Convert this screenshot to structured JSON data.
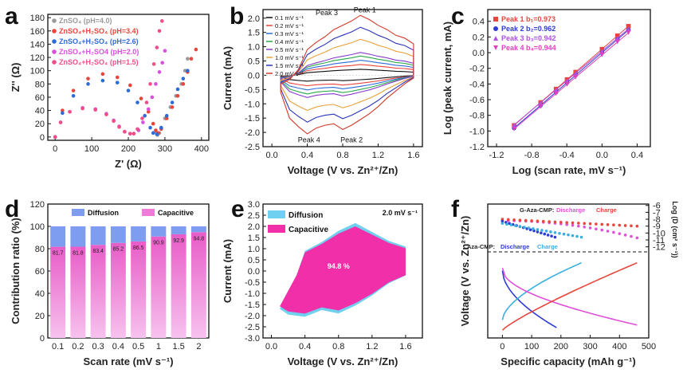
{
  "chart_data": [
    {
      "panel": "a",
      "type": "scatter",
      "xlabel": "Z' (Ω)",
      "ylabel": "Z'' (Ω)",
      "xlim": [
        -20,
        420
      ],
      "ylim": [
        -5,
        185
      ],
      "xticks": [
        "0",
        "100",
        "200",
        "300",
        "400"
      ],
      "yticks": [
        "0",
        "20",
        "40",
        "60",
        "80",
        "100",
        "120",
        "140",
        "160",
        "180"
      ],
      "legend_position": "top-left",
      "series": [
        {
          "name": "ZnSO₄ (pH=4.0)",
          "color": "#9a9a9a",
          "points": [
            [
              275,
              8
            ],
            [
              280,
              3
            ],
            [
              285,
              6
            ],
            [
              290,
              14
            ],
            [
              300,
              28
            ],
            [
              315,
              45
            ],
            [
              330,
              62
            ],
            [
              345,
              80
            ],
            [
              355,
              100
            ],
            [
              362,
              118
            ]
          ]
        },
        {
          "name": "ZnSO₄+H₂SO₄ (pH=3.4)",
          "color": "#e8453c",
          "points": [
            [
              0,
              0
            ],
            [
              20,
              40
            ],
            [
              50,
              70
            ],
            [
              90,
              88
            ],
            [
              130,
              95
            ],
            [
              170,
              90
            ],
            [
              205,
              78
            ],
            [
              235,
              58
            ],
            [
              255,
              38
            ],
            [
              268,
              20
            ],
            [
              275,
              10
            ],
            [
              282,
              6
            ],
            [
              290,
              12
            ],
            [
              305,
              28
            ],
            [
              320,
              45
            ],
            [
              335,
              62
            ],
            [
              350,
              80
            ],
            [
              362,
              98
            ],
            [
              372,
              118
            ],
            [
              385,
              132
            ]
          ]
        },
        {
          "name": "ZnSO₄+H₂SO₄ (pH=2.6)",
          "color": "#2e6bd6",
          "points": [
            [
              0,
              0
            ],
            [
              20,
              36
            ],
            [
              50,
              62
            ],
            [
              90,
              80
            ],
            [
              130,
              85
            ],
            [
              170,
              82
            ],
            [
              200,
              70
            ],
            [
              225,
              52
            ],
            [
              245,
              32
            ],
            [
              260,
              14
            ],
            [
              268,
              6
            ],
            [
              278,
              4
            ],
            [
              290,
              14
            ],
            [
              305,
              32
            ],
            [
              320,
              52
            ],
            [
              335,
              72
            ],
            [
              350,
              88
            ],
            [
              362,
              100
            ]
          ]
        },
        {
          "name": "ZnSO₄+H₂SO4 (pH=2.0)",
          "color": "#d94fe0",
          "points": [
            [
              0,
              0
            ],
            [
              15,
              22
            ],
            [
              40,
              38
            ],
            [
              75,
              44
            ],
            [
              110,
              42
            ],
            [
              140,
              35
            ],
            [
              160,
              25
            ],
            [
              175,
              16
            ],
            [
              190,
              8
            ],
            [
              205,
              5
            ],
            [
              215,
              5
            ],
            [
              228,
              10
            ],
            [
              240,
              22
            ],
            [
              255,
              42
            ],
            [
              265,
              60
            ],
            [
              275,
              80
            ],
            [
              285,
              98
            ],
            [
              293,
              112
            ],
            [
              300,
              130
            ]
          ]
        },
        {
          "name": "ZnSO₄+H₂SO₄ (pH=1.5)",
          "color": "#f04e8a",
          "points": [
            [
              0,
              0
            ],
            [
              15,
              22
            ],
            [
              40,
              38
            ],
            [
              75,
              43
            ],
            [
              110,
              41
            ],
            [
              140,
              34
            ],
            [
              160,
              24
            ],
            [
              175,
              15
            ],
            [
              190,
              8
            ],
            [
              205,
              5
            ],
            [
              215,
              5
            ],
            [
              225,
              12
            ],
            [
              238,
              28
            ],
            [
              250,
              52
            ],
            [
              260,
              80
            ],
            [
              270,
              110
            ],
            [
              278,
              135
            ],
            [
              285,
              160
            ],
            [
              292,
              175
            ]
          ]
        }
      ]
    },
    {
      "panel": "b",
      "type": "line",
      "xlabel": "Voltage (V vs. Zn²⁺/Zn)",
      "ylabel": "Current (mA)",
      "xlim": [
        -0.1,
        1.7
      ],
      "ylim": [
        -2.5,
        2.3
      ],
      "xticks": [
        "0.0",
        "0.4",
        "0.8",
        "1.2",
        "1.6"
      ],
      "yticks": [
        "-2.5",
        "-2.0",
        "-1.5",
        "-1.0",
        "-0.5",
        "0.0",
        "0.5",
        "1.0",
        "1.5",
        "2.0"
      ],
      "legend_position": "top-left",
      "annotations": [
        "Peak 3",
        "Peak 1",
        "Peak 4",
        "Peak 2"
      ],
      "series": [
        {
          "name": "0.1 mV s⁻¹",
          "color": "#111111",
          "scale": 0.1
        },
        {
          "name": "0.2 mV s⁻¹",
          "color": "#e8453c",
          "scale": 0.18
        },
        {
          "name": "0.3 mV s⁻¹",
          "color": "#2e6bd6",
          "scale": 0.25
        },
        {
          "name": "0.4 mV s⁻¹",
          "color": "#2aa84a",
          "scale": 0.32
        },
        {
          "name": "0.5 mV s⁻¹",
          "color": "#8a3ac9",
          "scale": 0.38
        },
        {
          "name": "1.0 mV s⁻¹",
          "color": "#e8a13c",
          "scale": 0.6
        },
        {
          "name": "1.5 mV s⁻¹",
          "color": "#2a35b8",
          "scale": 0.8
        },
        {
          "name": "2.0 mV s⁻¹",
          "color": "#d23a2a",
          "scale": 1.0
        }
      ]
    },
    {
      "panel": "c",
      "type": "scatter",
      "xlabel": "Log (scan rate, mV s⁻¹)",
      "ylabel": "Log (peak current, mA)",
      "xlim": [
        -1.3,
        0.55
      ],
      "ylim": [
        -1.2,
        0.55
      ],
      "xticks": [
        "-1.2",
        "-0.8",
        "-0.4",
        "0.0",
        "0.4"
      ],
      "yticks": [
        "-1.2",
        "-1.0",
        "-0.8",
        "-0.6",
        "-0.4",
        "-0.2",
        "0.0",
        "0.2",
        "0.4"
      ],
      "x": [
        -1.0,
        -0.699,
        -0.523,
        -0.398,
        -0.301,
        0.0,
        0.176,
        0.301
      ],
      "legend_position": "top-left",
      "series": [
        {
          "name": "Peak 1 b₁=0.973",
          "color": "#e8453c",
          "marker": "square",
          "slope": 0.973,
          "intercept": 0.045
        },
        {
          "name": "Peak 2 b₂=0.962",
          "color": "#2e3bd6",
          "marker": "circle",
          "slope": 0.962,
          "intercept": 0.0
        },
        {
          "name": "Peak 3 b₃=0.942",
          "color": "#b14fe0",
          "marker": "triangle",
          "slope": 0.942,
          "intercept": 0.02
        },
        {
          "name": "Peak 4 b₄=0.944",
          "color": "#e040c0",
          "marker": "triangle-down",
          "slope": 0.944,
          "intercept": -0.03
        }
      ]
    },
    {
      "panel": "d",
      "type": "bar",
      "xlabel": "Scan rate (mV s⁻¹)",
      "ylabel": "Contribution ratio (%)",
      "ylim": [
        0,
        120
      ],
      "yticks": [
        "0",
        "20",
        "40",
        "60",
        "80",
        "100",
        "120"
      ],
      "categories": [
        "0.1",
        "0.2",
        "0.3",
        "0.4",
        "0.5",
        "1",
        "1.5",
        "2"
      ],
      "legend_position": "top",
      "series": [
        {
          "name": "Capacitive",
          "color": "#f07ad8",
          "values": [
            81.7,
            81.8,
            83.4,
            85.2,
            86.5,
            90.9,
            92.9,
            94.8
          ]
        },
        {
          "name": "Diffusion",
          "color": "#7f9df0",
          "values": [
            18.3,
            18.2,
            16.6,
            14.8,
            13.5,
            9.1,
            7.1,
            5.2
          ]
        }
      ],
      "data_labels": [
        "81.7",
        "81.8",
        "83.4",
        "85.2",
        "86.5",
        "90.9",
        "92.9",
        "94.8"
      ]
    },
    {
      "panel": "e",
      "type": "area",
      "xlabel": "Voltage (V vs. Zn²⁺/Zn)",
      "ylabel": "Current (mA)",
      "xlim": [
        -0.1,
        1.8
      ],
      "ylim": [
        -3.0,
        3.0
      ],
      "xticks": [
        "0.0",
        "0.4",
        "0.8",
        "1.2",
        "1.6"
      ],
      "yticks": [
        "-3.0",
        "-2.5",
        "-2.0",
        "-1.5",
        "-1.0",
        "-0.5",
        "0.0",
        "0.5",
        "1.0",
        "1.5",
        "2.0",
        "2.5",
        "3.0"
      ],
      "legend_position": "top-left",
      "series": [
        {
          "name": "Diffusion",
          "color": "#6fd0f0"
        },
        {
          "name": "Capacitive",
          "color": "#f02fa8"
        }
      ],
      "annotations": [
        "2.0 mV s⁻¹",
        "94.8 %"
      ]
    },
    {
      "panel": "f",
      "type": "line",
      "xlabel": "Specific capacity (mAh g⁻¹)",
      "ylabel": "Voltage (V vs. Zn²⁺/Zn)",
      "ylabel2": "Log (D (cm² s⁻¹))",
      "xlim": [
        -50,
        500
      ],
      "xticks": [
        "0",
        "100",
        "200",
        "300",
        "400",
        "500"
      ],
      "yticks2": [
        "-6",
        "-7",
        "-8",
        "-9",
        "-10",
        "-11",
        "-12"
      ],
      "legend_labels": [
        "G-Aza-CMP:",
        "Discharge",
        "Charge",
        "Aza-CMP:",
        "Discharge",
        "Charge"
      ],
      "series": [
        {
          "name": "G-Aza-CMP Discharge",
          "color": "#e050d8"
        },
        {
          "name": "G-Aza-CMP Charge",
          "color": "#e8453c"
        },
        {
          "name": "Aza-CMP Discharge",
          "color": "#2e3bd6"
        },
        {
          "name": "Aza-CMP Charge",
          "color": "#3ab0e0"
        }
      ]
    }
  ]
}
